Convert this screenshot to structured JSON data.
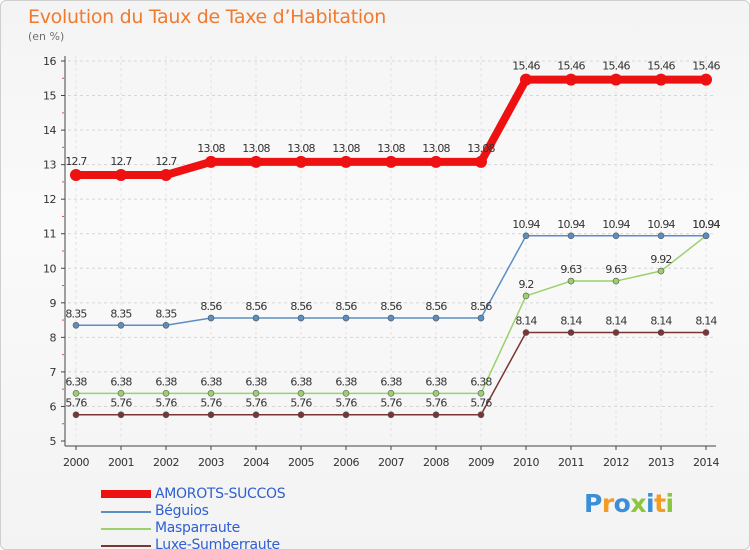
{
  "chart_data": {
    "type": "line",
    "title": "Evolution du Taux de Taxe d'Habitation",
    "ylabel": "(en %)",
    "xlabel": "",
    "ylim": [
      5,
      16
    ],
    "yticks": [
      5,
      6,
      7,
      8,
      9,
      10,
      11,
      12,
      13,
      14,
      15,
      16
    ],
    "categories": [
      "2000",
      "2001",
      "2002",
      "2003",
      "2004",
      "2005",
      "2006",
      "2007",
      "2008",
      "2009",
      "2010",
      "2011",
      "2012",
      "2013",
      "2014"
    ],
    "series": [
      {
        "name": "AMOROTS-SUCCOS",
        "color": "#ee1111",
        "labels": [
          "12.7",
          "12.7",
          "12.7",
          "13.08",
          "13.08",
          "13.08",
          "13.08",
          "13.08",
          "13.08",
          "13.08",
          "15.46",
          "15.46",
          "15.46",
          "15.46",
          "15.46"
        ],
        "values": [
          12.7,
          12.7,
          12.7,
          13.08,
          13.08,
          13.08,
          13.08,
          13.08,
          13.08,
          13.08,
          15.46,
          15.46,
          15.46,
          15.46,
          15.46
        ]
      },
      {
        "name": "Béguios",
        "color": "#5b8fc4",
        "labels": [
          "8.35",
          "8.35",
          "8.35",
          "8.56",
          "8.56",
          "8.56",
          "8.56",
          "8.56",
          "8.56",
          "8.56",
          "10.94",
          "10.94",
          "10.94",
          "10.94",
          "10.94"
        ],
        "values": [
          8.35,
          8.35,
          8.35,
          8.56,
          8.56,
          8.56,
          8.56,
          8.56,
          8.56,
          8.56,
          10.94,
          10.94,
          10.94,
          10.94,
          10.94
        ]
      },
      {
        "name": "Masparraute",
        "color": "#99d26b",
        "labels": [
          "6.38",
          "6.38",
          "6.38",
          "6.38",
          "6.38",
          "6.38",
          "6.38",
          "6.38",
          "6.38",
          "6.38",
          "9.2",
          "9.63",
          "9.63",
          "9.92",
          "10.94"
        ],
        "values": [
          6.38,
          6.38,
          6.38,
          6.38,
          6.38,
          6.38,
          6.38,
          6.38,
          6.38,
          6.38,
          9.2,
          9.63,
          9.63,
          9.92,
          10.94
        ]
      },
      {
        "name": "Luxe-Sumberraute",
        "color": "#7a3535",
        "labels": [
          "5.76",
          "5.76",
          "5.76",
          "5.76",
          "5.76",
          "5.76",
          "5.76",
          "5.76",
          "5.76",
          "5.76",
          "8.14",
          "8.14",
          "8.14",
          "8.14",
          "8.14"
        ],
        "values": [
          5.76,
          5.76,
          5.76,
          5.76,
          5.76,
          5.76,
          5.76,
          5.76,
          5.76,
          5.76,
          8.14,
          8.14,
          8.14,
          8.14,
          8.14
        ]
      }
    ]
  },
  "header": {
    "title": "Evolution du Taux de Taxe d’Habitation",
    "unit": "(en %)"
  },
  "legend": {
    "items": [
      "AMOROTS-SUCCOS",
      "Béguios",
      "Masparraute",
      "Luxe-Sumberraute"
    ]
  },
  "logo": {
    "p1": "P",
    "p2": "r",
    "p3": "o",
    "p4": "x",
    "p5": "i",
    "p6": "t",
    "p7": "i"
  }
}
